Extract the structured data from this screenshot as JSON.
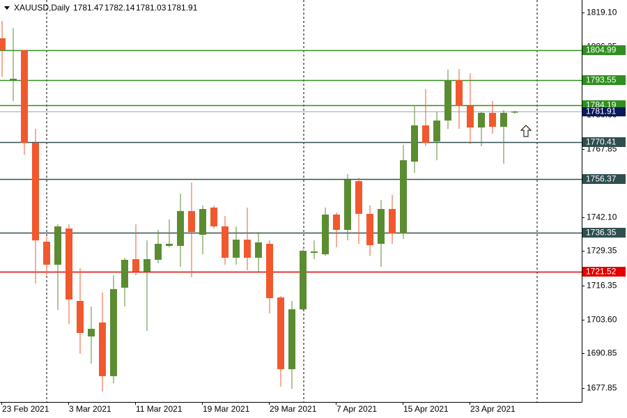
{
  "chart_data": {
    "type": "candlestick",
    "symbol": "XAUUSD,Daily",
    "categories": [
      "23 Feb 2021",
      null,
      null,
      null,
      null,
      null,
      "3 Mar 2021",
      null,
      null,
      null,
      null,
      null,
      "11 Mar 2021",
      null,
      null,
      null,
      null,
      null,
      "19 Mar 2021",
      null,
      null,
      null,
      null,
      null,
      "29 Mar 2021",
      null,
      null,
      null,
      null,
      null,
      "7 Apr 2021",
      null,
      null,
      null,
      null,
      null,
      "15 Apr 2021",
      null,
      null,
      null,
      null,
      null,
      "23 Apr 2021",
      null,
      null,
      null,
      null
    ],
    "open": [
      1809.4,
      1793.68,
      1804.95,
      1770.1,
      1732.89,
      1724.24,
      1737.86,
      1710.61,
      1697.25,
      1702.49,
      1682.31,
      1715.59,
      1726.33,
      1721.62,
      1726.07,
      1731.31,
      1731.31,
      1744.42,
      1735.51,
      1745.73,
      1738.65,
      1726.86,
      1733.67,
      1726.86,
      1732.1,
      1711.92,
      1684.93,
      1707.47,
      1728.69,
      1728.17,
      1743.1,
      1737.34,
      1755.68,
      1743.37,
      1732.1,
      1745.2,
      1736.03,
      1763.02,
      1776.65,
      1770.62,
      1778.48,
      1793.68,
      1783.99,
      1775.86,
      1781.36,
      1776.12,
      1781.47
    ],
    "high": [
      1815.96,
      1813.33,
      1804.95,
      1775.34,
      1734.72,
      1739.44,
      1739.44,
      1722.93,
      1708.51,
      1713.76,
      1720.31,
      1726.86,
      1739.44,
      1733.41,
      1737.34,
      1741.27,
      1750.97,
      1755.16,
      1746.51,
      1746.51,
      1742.58,
      1738.65,
      1745.73,
      1736.55,
      1733.41,
      1712.45,
      1710.61,
      1730.0,
      1733.41,
      1745.73,
      1743.89,
      1758.3,
      1756.99,
      1746.51,
      1748.61,
      1750.44,
      1769.31,
      1783.99,
      1790.27,
      1781.89,
      1797.61,
      1797.87,
      1796.3,
      1781.89,
      1785.82,
      1782.41,
      1782.14
    ],
    "low": [
      1794.99,
      1785.82,
      1765.64,
      1717.16,
      1720.31,
      1707.2,
      1701.96,
      1690.7,
      1687.03,
      1676.54,
      1679.69,
      1708.51,
      1720.31,
      1699.34,
      1724.76,
      1730.79,
      1723.45,
      1719.52,
      1728.17,
      1737.86,
      1724.24,
      1724.24,
      1722.14,
      1721.62,
      1705.89,
      1678.38,
      1677.59,
      1707.2,
      1726.33,
      1727.65,
      1730.79,
      1733.41,
      1732.1,
      1727.65,
      1723.45,
      1732.1,
      1733.93,
      1758.83,
      1768.79,
      1763.55,
      1775.34,
      1775.34,
      1769.57,
      1768.79,
      1773.5,
      1762.24,
      1781.03
    ],
    "close": [
      1804.95,
      1794.21,
      1770.1,
      1733.41,
      1724.24,
      1738.65,
      1711.14,
      1698.56,
      1700.13,
      1682.31,
      1715.07,
      1726.07,
      1721.62,
      1726.33,
      1732.1,
      1732.1,
      1744.42,
      1736.55,
      1745.2,
      1738.65,
      1726.86,
      1733.67,
      1726.86,
      1732.62,
      1711.66,
      1684.93,
      1707.47,
      1729.48,
      1729.22,
      1743.1,
      1737.34,
      1756.21,
      1743.37,
      1731.58,
      1745.2,
      1736.03,
      1763.55,
      1776.65,
      1770.1,
      1778.48,
      1793.68,
      1783.99,
      1775.86,
      1781.36,
      1776.12,
      1781.36,
      1781.91
    ],
    "up_color": "#5b8c32",
    "down_color": "#f2582d",
    "current_price_color": "#0b1a5c",
    "ylim": [
      1672.6,
      1823.82
    ],
    "yticks": [
      {
        "value": 1819.1,
        "label": "1819.10"
      },
      1806.35,
      {
        "value": 1780.6,
        "label": "1780.60"
      },
      1767.85,
      {
        "value": 1742.1,
        "label": "1742.10"
      },
      1729.35,
      1716.35,
      {
        "value": 1703.6,
        "label": "1703.60"
      },
      1690.85,
      1677.85
    ],
    "levels": [
      {
        "value": 1804.99,
        "color": "#2f8f1f"
      },
      {
        "value": 1793.55,
        "color": "#2f8f1f"
      },
      {
        "value": 1784.19,
        "color": "#2f8f1f"
      },
      {
        "value": 1770.41,
        "color": "#2f4f4f"
      },
      {
        "value": 1756.37,
        "color": "#2f4f4f"
      },
      {
        "value": 1736.35,
        "color": "#2f4f4f"
      },
      {
        "value": 1721.52,
        "color": "#e00000"
      }
    ]
  }
}
